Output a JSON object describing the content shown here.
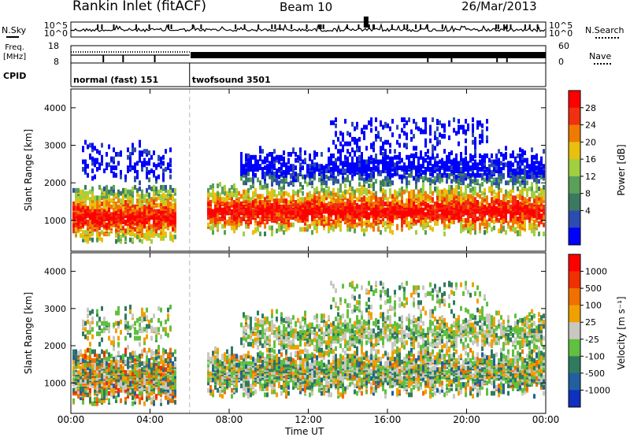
{
  "header": {
    "station": "Rankin Inlet (fitACF)",
    "beam": "Beam 10",
    "date": "26/Mar/2013"
  },
  "side_labels": {
    "nsky": "N.Sky",
    "nsearch": "N.Search",
    "freq_line1": "Freq.",
    "freq_line2": "[MHz]",
    "nave": "Nave",
    "cpid": "CPID"
  },
  "chart_data": [
    {
      "type": "line",
      "name": "noise",
      "yticks_left": [
        "10^5",
        "10^0"
      ],
      "yticks_right": [
        "10^5",
        "10^0"
      ]
    },
    {
      "type": "line",
      "name": "frequency",
      "yticks_left": [
        "18",
        "8"
      ],
      "yticks_right": [
        "60",
        "0"
      ]
    },
    {
      "type": "table",
      "name": "cpid",
      "segments": [
        {
          "label": "normal (fast) 151",
          "start_hour": 0,
          "end_hour": 6
        },
        {
          "label": "twofsound 3501",
          "start_hour": 6,
          "end_hour": 24
        }
      ]
    },
    {
      "type": "heatmap",
      "name": "power",
      "ylabel": "Slant Range [km]",
      "yticks": [
        1000,
        2000,
        3000,
        4000
      ],
      "ylim": [
        180,
        4500
      ],
      "colorbar_label": "Power [dB]",
      "colorbar_ticks": [
        "28",
        "24",
        "20",
        "16",
        "12",
        "8",
        "4"
      ],
      "colors": [
        "#0000ff",
        "#2c4cb0",
        "#3b7a60",
        "#5aa05a",
        "#a0d040",
        "#e8c010",
        "#f07a00",
        "#f03010",
        "#ff0000"
      ]
    },
    {
      "type": "heatmap",
      "name": "velocity",
      "ylabel": "Slant Range [km]",
      "yticks": [
        1000,
        2000,
        3000,
        4000
      ],
      "ylim": [
        180,
        4500
      ],
      "colorbar_label": "Velocity [m s⁻¹]",
      "colorbar_ticks": [
        "1000",
        "500",
        "100",
        "25",
        "-25",
        "-100",
        "-500",
        "-1000"
      ],
      "colors": [
        "#1030c0",
        "#2060a0",
        "#307a60",
        "#60c040",
        "#c8c8c0",
        "#f0a000",
        "#f07000",
        "#f03000",
        "#ff0000"
      ]
    }
  ],
  "xaxis": {
    "label": "Time UT",
    "ticks": [
      "00:00",
      "04:00",
      "08:00",
      "12:00",
      "16:00",
      "20:00",
      "00:00"
    ],
    "range_hours": [
      0,
      24
    ]
  }
}
